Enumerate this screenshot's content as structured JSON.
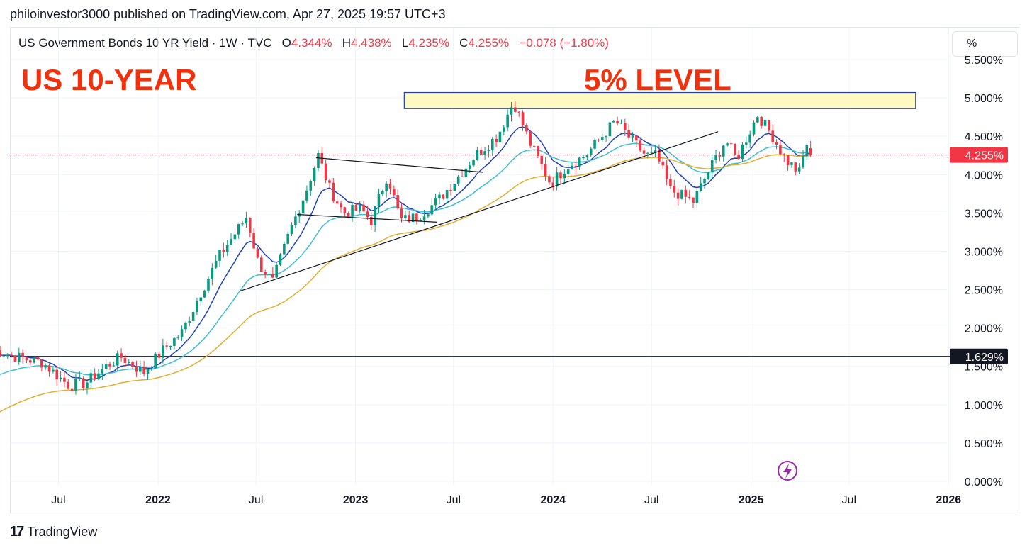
{
  "header": {
    "published": "philoinvestor3000 published on TradingView.com, Apr 27, 2025 19:57 UTC+3"
  },
  "legend": {
    "symbol": "US Government Bonds 10 YR Yield · 1W · TVC",
    "o_label": "O",
    "o_value": "4.344%",
    "h_label": "H",
    "h_value": "4.438%",
    "l_label": "L",
    "l_value": "4.235%",
    "c_label": "C",
    "c_value": "4.255%",
    "change": "−0.078 (−1.80%)"
  },
  "toolbar": {
    "scale_button": "%"
  },
  "annotations": {
    "left_title": "US 10-YEAR",
    "zone_title": "5% LEVEL"
  },
  "price_labels": {
    "current": "4.255%",
    "horizontal_line": "1.629%"
  },
  "footer": {
    "brand": "TradingView"
  },
  "colors": {
    "up": "#089981",
    "down": "#f23645",
    "ema_fast": "#1e3fbf",
    "ema_mid": "#3cbfcf",
    "ema_slow": "#e3ad2f",
    "annotation": "#f2300c",
    "zone_fill": "#fff9c4",
    "zone_border": "#1e3fbf"
  },
  "chart_data": {
    "type": "candlestick",
    "y_axis": {
      "ticks": [
        "0.000%",
        "0.500%",
        "1.000%",
        "1.500%",
        "2.000%",
        "2.500%",
        "3.000%",
        "3.500%",
        "4.000%",
        "4.500%",
        "5.000%",
        "5.500%"
      ],
      "tick_values": [
        0,
        0.5,
        1,
        1.5,
        2,
        2.5,
        3,
        3.5,
        4,
        4.5,
        5,
        5.5
      ],
      "ylim": [
        0,
        5.5
      ]
    },
    "x_axis": {
      "ticks": [
        "Jul",
        "2022",
        "Jul",
        "2023",
        "Jul",
        "2024",
        "Jul",
        "2025",
        "Jul",
        "2026"
      ],
      "tick_dates": [
        "2021-07",
        "2022-01",
        "2022-07",
        "2023-01",
        "2023-07",
        "2024-01",
        "2024-07",
        "2025-01",
        "2025-07",
        "2026-01"
      ],
      "bold": [
        false,
        true,
        false,
        true,
        false,
        true,
        false,
        true,
        false,
        true
      ],
      "range": [
        "2021-02",
        "2026-02"
      ]
    },
    "price_path": [
      {
        "t": "2021-03-01",
        "v": 1.72
      },
      {
        "t": "2021-04-15",
        "v": 1.62
      },
      {
        "t": "2021-06-01",
        "v": 1.55
      },
      {
        "t": "2021-07-20",
        "v": 1.25
      },
      {
        "t": "2021-08-20",
        "v": 1.28
      },
      {
        "t": "2021-09-30",
        "v": 1.52
      },
      {
        "t": "2021-10-25",
        "v": 1.62
      },
      {
        "t": "2021-12-05",
        "v": 1.42
      },
      {
        "t": "2022-01-15",
        "v": 1.75
      },
      {
        "t": "2022-02-15",
        "v": 1.95
      },
      {
        "t": "2022-03-20",
        "v": 2.45
      },
      {
        "t": "2022-04-25",
        "v": 2.95
      },
      {
        "t": "2022-05-10",
        "v": 3.1
      },
      {
        "t": "2022-06-14",
        "v": 3.45
      },
      {
        "t": "2022-07-05",
        "v": 2.85
      },
      {
        "t": "2022-08-01",
        "v": 2.6
      },
      {
        "t": "2022-09-01",
        "v": 3.25
      },
      {
        "t": "2022-10-05",
        "v": 3.85
      },
      {
        "t": "2022-10-24",
        "v": 4.25
      },
      {
        "t": "2022-11-15",
        "v": 3.8
      },
      {
        "t": "2022-12-10",
        "v": 3.5
      },
      {
        "t": "2023-01-10",
        "v": 3.55
      },
      {
        "t": "2023-01-30",
        "v": 3.4
      },
      {
        "t": "2023-03-01",
        "v": 4.0
      },
      {
        "t": "2023-03-25",
        "v": 3.4
      },
      {
        "t": "2023-04-25",
        "v": 3.45
      },
      {
        "t": "2023-06-01",
        "v": 3.65
      },
      {
        "t": "2023-07-01",
        "v": 3.9
      },
      {
        "t": "2023-08-10",
        "v": 4.25
      },
      {
        "t": "2023-09-20",
        "v": 4.5
      },
      {
        "t": "2023-10-20",
        "v": 4.95
      },
      {
        "t": "2023-11-20",
        "v": 4.4
      },
      {
        "t": "2023-12-28",
        "v": 3.88
      },
      {
        "t": "2024-01-25",
        "v": 4.1
      },
      {
        "t": "2024-03-01",
        "v": 4.25
      },
      {
        "t": "2024-04-25",
        "v": 4.7
      },
      {
        "t": "2024-05-25",
        "v": 4.45
      },
      {
        "t": "2024-06-20",
        "v": 4.25
      },
      {
        "t": "2024-07-10",
        "v": 4.25
      },
      {
        "t": "2024-08-05",
        "v": 3.8
      },
      {
        "t": "2024-09-16",
        "v": 3.65
      },
      {
        "t": "2024-10-15",
        "v": 4.05
      },
      {
        "t": "2024-11-15",
        "v": 4.45
      },
      {
        "t": "2024-12-05",
        "v": 4.2
      },
      {
        "t": "2025-01-13",
        "v": 4.78
      },
      {
        "t": "2025-02-10",
        "v": 4.5
      },
      {
        "t": "2025-03-05",
        "v": 4.2
      },
      {
        "t": "2025-04-04",
        "v": 4.0
      },
      {
        "t": "2025-04-10",
        "v": 4.45
      },
      {
        "t": "2025-04-25",
        "v": 4.26
      }
    ],
    "last_candle": {
      "open": 4.344,
      "high": 4.438,
      "low": 4.235,
      "close": 4.255
    },
    "zone_5pct": {
      "from": "2023-04-01",
      "to": "2025-11-01",
      "low": 4.86,
      "high": 5.07
    },
    "horizontal_line": 1.629,
    "trendlines": [
      {
        "from": [
          "2022-06-01",
          2.48
        ],
        "to": [
          "2024-11-01",
          4.56
        ]
      },
      {
        "from": [
          "2022-10-20",
          4.22
        ],
        "to": [
          "2023-08-25",
          4.03
        ]
      },
      {
        "from": [
          "2022-09-15",
          3.48
        ],
        "to": [
          "2023-06-01",
          3.38
        ]
      }
    ]
  }
}
